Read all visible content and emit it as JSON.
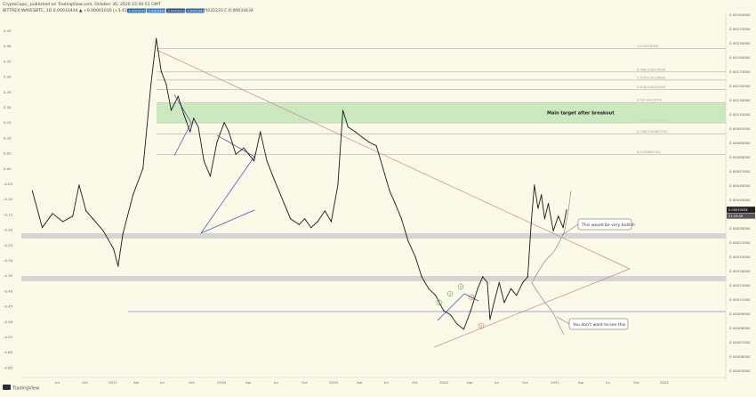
{
  "header": {
    "line1": "CryptoCapo_ published on TradingView.com, October 30, 2020 15:40:51 GMT",
    "line2": "BITTREX:WAVESBTC, 1D 0.00033434 ▲ +0.00001030 (+3.43%) O:0.00032404 H:0.00033449 L:0.00032233 C:0.00033434",
    "badges": [
      "0.00032404",
      "0.00033449",
      "0.00032233",
      "0.00033434"
    ]
  },
  "footer": {
    "brand": "TradingView"
  },
  "colors": {
    "background": "#fbf9e7",
    "price": "#1a1a1a",
    "trend": "#c98a8a",
    "support": "#4a55c8",
    "pattern": "#3a44c0",
    "zone": "#bfe3b5",
    "band": "#cfcfcf",
    "projection": "#9a9a9a",
    "last_price_label": "#1f1f1f"
  },
  "chart_data": {
    "type": "line",
    "instrument": "BITTREX:WAVESBTC, 1D",
    "x_labels": [
      "Jul",
      "Oct",
      "2017",
      "Apr",
      "Jul",
      "Oct",
      "2018",
      "Apr",
      "Jul",
      "Oct",
      "2019",
      "Apr",
      "Jul",
      "Oct",
      "2020",
      "Apr",
      "Jul",
      "Oct",
      "2021",
      "Apr",
      "Jul",
      "Oct",
      "2022"
    ],
    "left_ticks": [
      "0.45",
      "0.40",
      "0.35",
      "0.30",
      "0.25",
      "0.20",
      "0.15",
      "0.10",
      "0.05",
      "0.00",
      "-0.05",
      "-0.10",
      "-0.15",
      "-0.20",
      "-0.25",
      "-0.30",
      "-0.35",
      "-0.40",
      "-0.45",
      "-0.50",
      "-0.55",
      "-0.60",
      "-0.65"
    ],
    "right_ticks": [
      "0.00340000",
      "0.00270000",
      "0.00230000",
      "0.00190000",
      "0.00170000",
      "0.00150000",
      "0.00130000",
      "0.00110000",
      "0.00095000",
      "0.00080000",
      "0.00068000",
      "0.00057000",
      "0.00048000",
      "0.00040000",
      "0.00034000",
      "0.00028000",
      "0.00023000",
      "0.00019000",
      "0.00016000",
      "0.00013000",
      "0.00011000",
      "0.00009000",
      "0.00008000",
      "0.00007000",
      "0.00006000",
      "0.00005000"
    ],
    "fib_levels": [
      {
        "label": "1(0.0023060)",
        "value": 0.002306
      },
      {
        "label": "0.786(0.0017400)",
        "value": 0.00174
      },
      {
        "label": "0.705(0.0015800)",
        "value": 0.00158
      },
      {
        "label": "0.618(0.0014100)",
        "value": 0.00141
      },
      {
        "label": "0.5(0.0012070)",
        "value": 0.001207
      },
      {
        "label": "0.382(0.00094676)",
        "value": 0.00094676
      },
      {
        "label": "0.236(0.00082720)",
        "value": 0.0008272
      },
      {
        "label": "0(0.00064740)",
        "value": 0.0006474
      }
    ],
    "price_series": [
      [
        "2016-06-01",
        0.00042
      ],
      [
        "2016-07-01",
        0.00027
      ],
      [
        "2016-08-01",
        0.00032
      ],
      [
        "2016-09-01",
        0.00029
      ],
      [
        "2016-10-01",
        0.00031
      ],
      [
        "2016-10-20",
        0.00045
      ],
      [
        "2016-11-10",
        0.00033
      ],
      [
        "2016-12-01",
        0.0003
      ],
      [
        "2017-01-01",
        0.00026
      ],
      [
        "2017-02-01",
        0.00021
      ],
      [
        "2017-02-15",
        0.00017
      ],
      [
        "2017-03-01",
        0.00025
      ],
      [
        "2017-04-01",
        0.0004
      ],
      [
        "2017-05-01",
        0.00055
      ],
      [
        "2017-05-25",
        0.0015
      ],
      [
        "2017-06-10",
        0.0026
      ],
      [
        "2017-06-25",
        0.00175
      ],
      [
        "2017-07-10",
        0.0015
      ],
      [
        "2017-07-25",
        0.0011
      ],
      [
        "2017-08-15",
        0.0013
      ],
      [
        "2017-09-01",
        0.00105
      ],
      [
        "2017-09-20",
        0.00085
      ],
      [
        "2017-10-01",
        0.001
      ],
      [
        "2017-10-15",
        0.0009
      ],
      [
        "2017-11-01",
        0.0006
      ],
      [
        "2017-11-20",
        0.0005
      ],
      [
        "2017-12-10",
        0.00075
      ],
      [
        "2018-01-01",
        0.00095
      ],
      [
        "2018-01-15",
        0.00085
      ],
      [
        "2018-02-05",
        0.00065
      ],
      [
        "2018-03-01",
        0.0007
      ],
      [
        "2018-04-01",
        0.0006
      ],
      [
        "2018-04-20",
        0.00085
      ],
      [
        "2018-05-10",
        0.0006
      ],
      [
        "2018-06-01",
        0.00048
      ],
      [
        "2018-07-01",
        0.00036
      ],
      [
        "2018-07-20",
        0.0003
      ],
      [
        "2018-08-15",
        0.00028
      ],
      [
        "2018-09-01",
        0.0003
      ],
      [
        "2018-09-20",
        0.00027
      ],
      [
        "2018-10-10",
        0.00029
      ],
      [
        "2018-11-01",
        0.00033
      ],
      [
        "2018-11-20",
        0.00029
      ],
      [
        "2018-12-10",
        0.00045
      ],
      [
        "2018-12-25",
        0.0011
      ],
      [
        "2019-01-10",
        0.0009
      ],
      [
        "2019-02-01",
        0.00085
      ],
      [
        "2019-02-20",
        0.0008
      ],
      [
        "2019-03-15",
        0.00075
      ],
      [
        "2019-04-05",
        0.00072
      ],
      [
        "2019-04-25",
        0.00055
      ],
      [
        "2019-05-15",
        0.00042
      ],
      [
        "2019-06-01",
        0.00036
      ],
      [
        "2019-06-20",
        0.0003
      ],
      [
        "2019-07-10",
        0.00023
      ],
      [
        "2019-08-01",
        0.00019
      ],
      [
        "2019-08-20",
        0.00015
      ],
      [
        "2019-09-10",
        0.00013
      ],
      [
        "2019-10-01",
        0.00012
      ],
      [
        "2019-10-25",
        0.0001
      ],
      [
        "2019-11-15",
        9.5e-05
      ],
      [
        "2019-12-05",
        8.5e-05
      ],
      [
        "2019-12-25",
        8e-05
      ],
      [
        "2020-01-15",
        0.0001
      ],
      [
        "2020-02-05",
        0.00013
      ],
      [
        "2020-02-20",
        0.00015
      ],
      [
        "2020-03-05",
        0.00014
      ],
      [
        "2020-03-13",
        9e-05
      ],
      [
        "2020-03-25",
        0.00011
      ],
      [
        "2020-04-10",
        0.00014
      ],
      [
        "2020-04-25",
        0.00011
      ],
      [
        "2020-05-15",
        0.00013
      ],
      [
        "2020-06-01",
        0.00012
      ],
      [
        "2020-06-20",
        0.00014
      ],
      [
        "2020-07-05",
        0.00015
      ],
      [
        "2020-07-15",
        0.00028
      ],
      [
        "2020-07-25",
        0.00045
      ],
      [
        "2020-08-05",
        0.00034
      ],
      [
        "2020-08-15",
        0.0004
      ],
      [
        "2020-08-25",
        0.0003
      ],
      [
        "2020-09-05",
        0.00036
      ],
      [
        "2020-09-20",
        0.00026
      ],
      [
        "2020-10-05",
        0.00031
      ],
      [
        "2020-10-20",
        0.00027
      ],
      [
        "2020-10-30",
        0.00033434
      ]
    ],
    "annotations": [
      "Main target after breakout",
      "This would be very bullish",
      "You don't want to see this"
    ],
    "wave_labels": [
      "1",
      "2",
      "3",
      "4",
      "5"
    ],
    "last_price": "0.00033434",
    "last_price_countdown": "21:19:09"
  }
}
